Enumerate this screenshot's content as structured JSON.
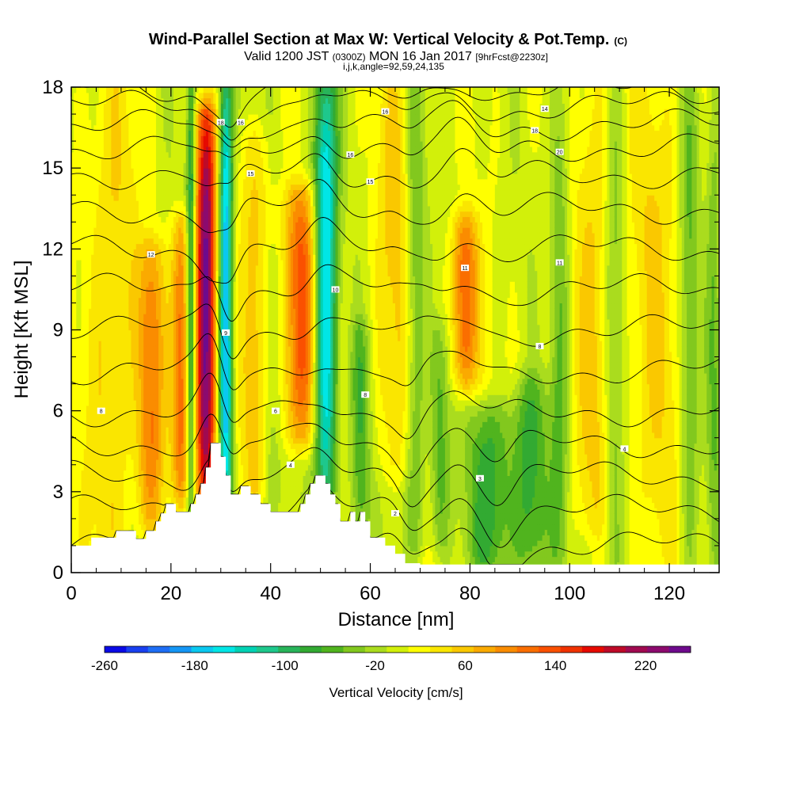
{
  "chart_data": {
    "type": "heatmap",
    "title": "Wind-Parallel Section at Max W: Vertical Velocity & Pot.Temp.",
    "title_mark": "(C)",
    "subtitle_parts": [
      "Valid 1200 JST ",
      "(0300Z)",
      " MON 16 Jan 2017 ",
      "[9hrFcst@2230z]"
    ],
    "subtitle2": "i,j,k,angle=92,59,24,135",
    "xlabel": "Distance [nm]",
    "ylabel": "Height [Kft MSL]",
    "xlim": [
      0,
      130
    ],
    "ylim": [
      0,
      18
    ],
    "x_ticks": [
      "0",
      "20",
      "40",
      "60",
      "80",
      "100",
      "120"
    ],
    "y_ticks": [
      "0",
      "3",
      "6",
      "9",
      "12",
      "15",
      "18"
    ],
    "colorbar": {
      "label": "Vertical Velocity [cm/s]",
      "min": -260,
      "max": 260,
      "step": 20,
      "tick_labels": [
        "-260",
        "-180",
        "-100",
        "-20",
        "60",
        "140",
        "220"
      ],
      "colors": [
        "#0a0ae6",
        "#1940f0",
        "#1e6ef5",
        "#1496f5",
        "#0ac8f0",
        "#00e6e6",
        "#00d2b4",
        "#1ec88c",
        "#28b45a",
        "#32aa32",
        "#50b41e",
        "#82c81e",
        "#aadc1e",
        "#d2f00a",
        "#ffff00",
        "#fae600",
        "#fac800",
        "#faaa00",
        "#fa8c00",
        "#fa6e00",
        "#fa5000",
        "#f03200",
        "#e60a00",
        "#be0a28",
        "#a00a50",
        "#8c0a6e",
        "#6e0a8c"
      ]
    },
    "terrain_kft": [
      [
        0,
        1.0
      ],
      [
        4,
        1.0
      ],
      [
        4,
        1.3
      ],
      [
        9,
        1.3
      ],
      [
        9,
        1.55
      ],
      [
        13,
        1.55
      ],
      [
        13,
        1.25
      ],
      [
        15,
        1.25
      ],
      [
        15,
        1.55
      ],
      [
        17,
        1.55
      ],
      [
        17,
        1.9
      ],
      [
        18,
        1.9
      ],
      [
        18,
        2.2
      ],
      [
        19,
        2.2
      ],
      [
        19,
        2.55
      ],
      [
        21,
        2.55
      ],
      [
        21,
        2.25
      ],
      [
        24,
        2.25
      ],
      [
        24,
        2.55
      ],
      [
        25,
        2.55
      ],
      [
        25,
        2.9
      ],
      [
        26,
        2.9
      ],
      [
        26,
        3.3
      ],
      [
        27,
        3.3
      ],
      [
        27,
        3.9
      ],
      [
        28,
        3.9
      ],
      [
        28,
        4.8
      ],
      [
        30,
        4.8
      ],
      [
        30,
        4.3
      ],
      [
        31,
        4.3
      ],
      [
        31,
        3.6
      ],
      [
        32,
        3.6
      ],
      [
        32,
        2.9
      ],
      [
        34,
        2.9
      ],
      [
        34,
        3.2
      ],
      [
        36,
        3.2
      ],
      [
        36,
        2.9
      ],
      [
        38,
        2.9
      ],
      [
        38,
        2.55
      ],
      [
        40,
        2.55
      ],
      [
        40,
        2.25
      ],
      [
        46,
        2.25
      ],
      [
        46,
        2.55
      ],
      [
        47,
        2.55
      ],
      [
        47,
        2.9
      ],
      [
        48,
        2.9
      ],
      [
        48,
        3.3
      ],
      [
        49,
        3.3
      ],
      [
        49,
        3.6
      ],
      [
        51,
        3.6
      ],
      [
        51,
        3.3
      ],
      [
        52,
        3.3
      ],
      [
        52,
        2.9
      ],
      [
        53,
        2.9
      ],
      [
        53,
        2.55
      ],
      [
        54,
        2.55
      ],
      [
        54,
        1.9
      ],
      [
        56,
        1.9
      ],
      [
        56,
        2.25
      ],
      [
        57,
        2.25
      ],
      [
        57,
        1.9
      ],
      [
        58,
        1.9
      ],
      [
        58,
        2.25
      ],
      [
        59,
        2.25
      ],
      [
        59,
        1.9
      ],
      [
        60,
        1.9
      ],
      [
        60,
        1.3
      ],
      [
        63,
        1.3
      ],
      [
        63,
        1.0
      ],
      [
        65,
        1.0
      ],
      [
        65,
        0.7
      ],
      [
        67,
        0.7
      ],
      [
        67,
        0.35
      ],
      [
        70,
        0.35
      ],
      [
        70,
        0.3
      ],
      [
        130,
        0.3
      ]
    ],
    "updrafts": [
      {
        "x": 27,
        "w": 2.0,
        "z0": 2,
        "z1": 17,
        "peak": 250
      },
      {
        "x": 22,
        "w": 1.8,
        "z0": 3,
        "z1": 13,
        "peak": 120
      },
      {
        "x": 16,
        "w": 2.6,
        "z0": 2,
        "z1": 12,
        "peak": 100
      },
      {
        "x": 46,
        "w": 3.5,
        "z0": 5,
        "z1": 14,
        "peak": 130
      },
      {
        "x": 79,
        "w": 2.5,
        "z0": 7,
        "z1": 13,
        "peak": 130
      },
      {
        "x": 8,
        "w": 5.0,
        "z0": 0,
        "z1": 18,
        "peak": 50
      },
      {
        "x": 105,
        "w": 4.0,
        "z0": 2,
        "z1": 18,
        "peak": 50
      },
      {
        "x": 117,
        "w": 6.0,
        "z0": 0,
        "z1": 18,
        "peak": 40
      },
      {
        "x": 37,
        "w": 3.0,
        "z0": 3,
        "z1": 16,
        "peak": 60
      },
      {
        "x": 65,
        "w": 4.0,
        "z0": 4,
        "z1": 18,
        "peak": 50
      }
    ],
    "downdrafts": [
      {
        "x": 31,
        "w": 1.4,
        "z0": 2,
        "z1": 18,
        "peak": -200
      },
      {
        "x": 51,
        "w": 2.3,
        "z0": 3,
        "z1": 18,
        "peak": -190
      },
      {
        "x": 84,
        "w": 4.5,
        "z0": 0,
        "z1": 6,
        "peak": -90
      },
      {
        "x": 92,
        "w": 3.5,
        "z0": 0,
        "z1": 7,
        "peak": -80
      },
      {
        "x": 58,
        "w": 2.0,
        "z0": 1,
        "z1": 9,
        "peak": -70
      },
      {
        "x": 69,
        "w": 2.0,
        "z0": 1,
        "z1": 18,
        "peak": -70
      },
      {
        "x": 74,
        "w": 2.0,
        "z0": 1,
        "z1": 9,
        "peak": -60
      },
      {
        "x": 98,
        "w": 2.0,
        "z0": 0,
        "z1": 18,
        "peak": -60
      },
      {
        "x": 109,
        "w": 2.0,
        "z0": 0,
        "z1": 18,
        "peak": -55
      },
      {
        "x": 124,
        "w": 2.0,
        "z0": 0,
        "z1": 18,
        "peak": -60
      },
      {
        "x": 129,
        "w": 1.5,
        "z0": 0,
        "z1": 18,
        "peak": -50
      },
      {
        "x": 40,
        "w": 2.0,
        "z0": 2,
        "z1": 12,
        "peak": -40
      },
      {
        "x": 24,
        "w": 0.9,
        "z0": 2,
        "z1": 18,
        "peak": -120
      }
    ],
    "theta_contour_base_kft": [
      1.0,
      2.3,
      3.6,
      4.8,
      6.0,
      7.5,
      9.0,
      10.5,
      12.0,
      13.5,
      14.8,
      15.8,
      16.6,
      17.3,
      17.9
    ],
    "contour_labels": [
      {
        "x": 6,
        "z": 6.0,
        "text": "8"
      },
      {
        "x": 16,
        "z": 11.8,
        "text": "12"
      },
      {
        "x": 31,
        "z": 8.9,
        "text": "9"
      },
      {
        "x": 41,
        "z": 6.0,
        "text": "6"
      },
      {
        "x": 44,
        "z": 4.0,
        "text": "4"
      },
      {
        "x": 53,
        "z": 10.5,
        "text": "10"
      },
      {
        "x": 59,
        "z": 6.6,
        "text": "8"
      },
      {
        "x": 65,
        "z": 2.2,
        "text": "2"
      },
      {
        "x": 79,
        "z": 11.3,
        "text": "11"
      },
      {
        "x": 82,
        "z": 3.5,
        "text": "3"
      },
      {
        "x": 94,
        "z": 8.4,
        "text": "8"
      },
      {
        "x": 98,
        "z": 11.5,
        "text": "11"
      },
      {
        "x": 111,
        "z": 4.6,
        "text": "4"
      },
      {
        "x": 30,
        "z": 16.7,
        "text": "18"
      },
      {
        "x": 34,
        "z": 16.7,
        "text": "16"
      },
      {
        "x": 36,
        "z": 14.8,
        "text": "15"
      },
      {
        "x": 56,
        "z": 15.5,
        "text": "16"
      },
      {
        "x": 60,
        "z": 14.5,
        "text": "15"
      },
      {
        "x": 63,
        "z": 17.1,
        "text": "16"
      },
      {
        "x": 95,
        "z": 17.2,
        "text": "14"
      },
      {
        "x": 93,
        "z": 16.4,
        "text": "18"
      },
      {
        "x": 98,
        "z": 15.6,
        "text": "20"
      }
    ]
  }
}
